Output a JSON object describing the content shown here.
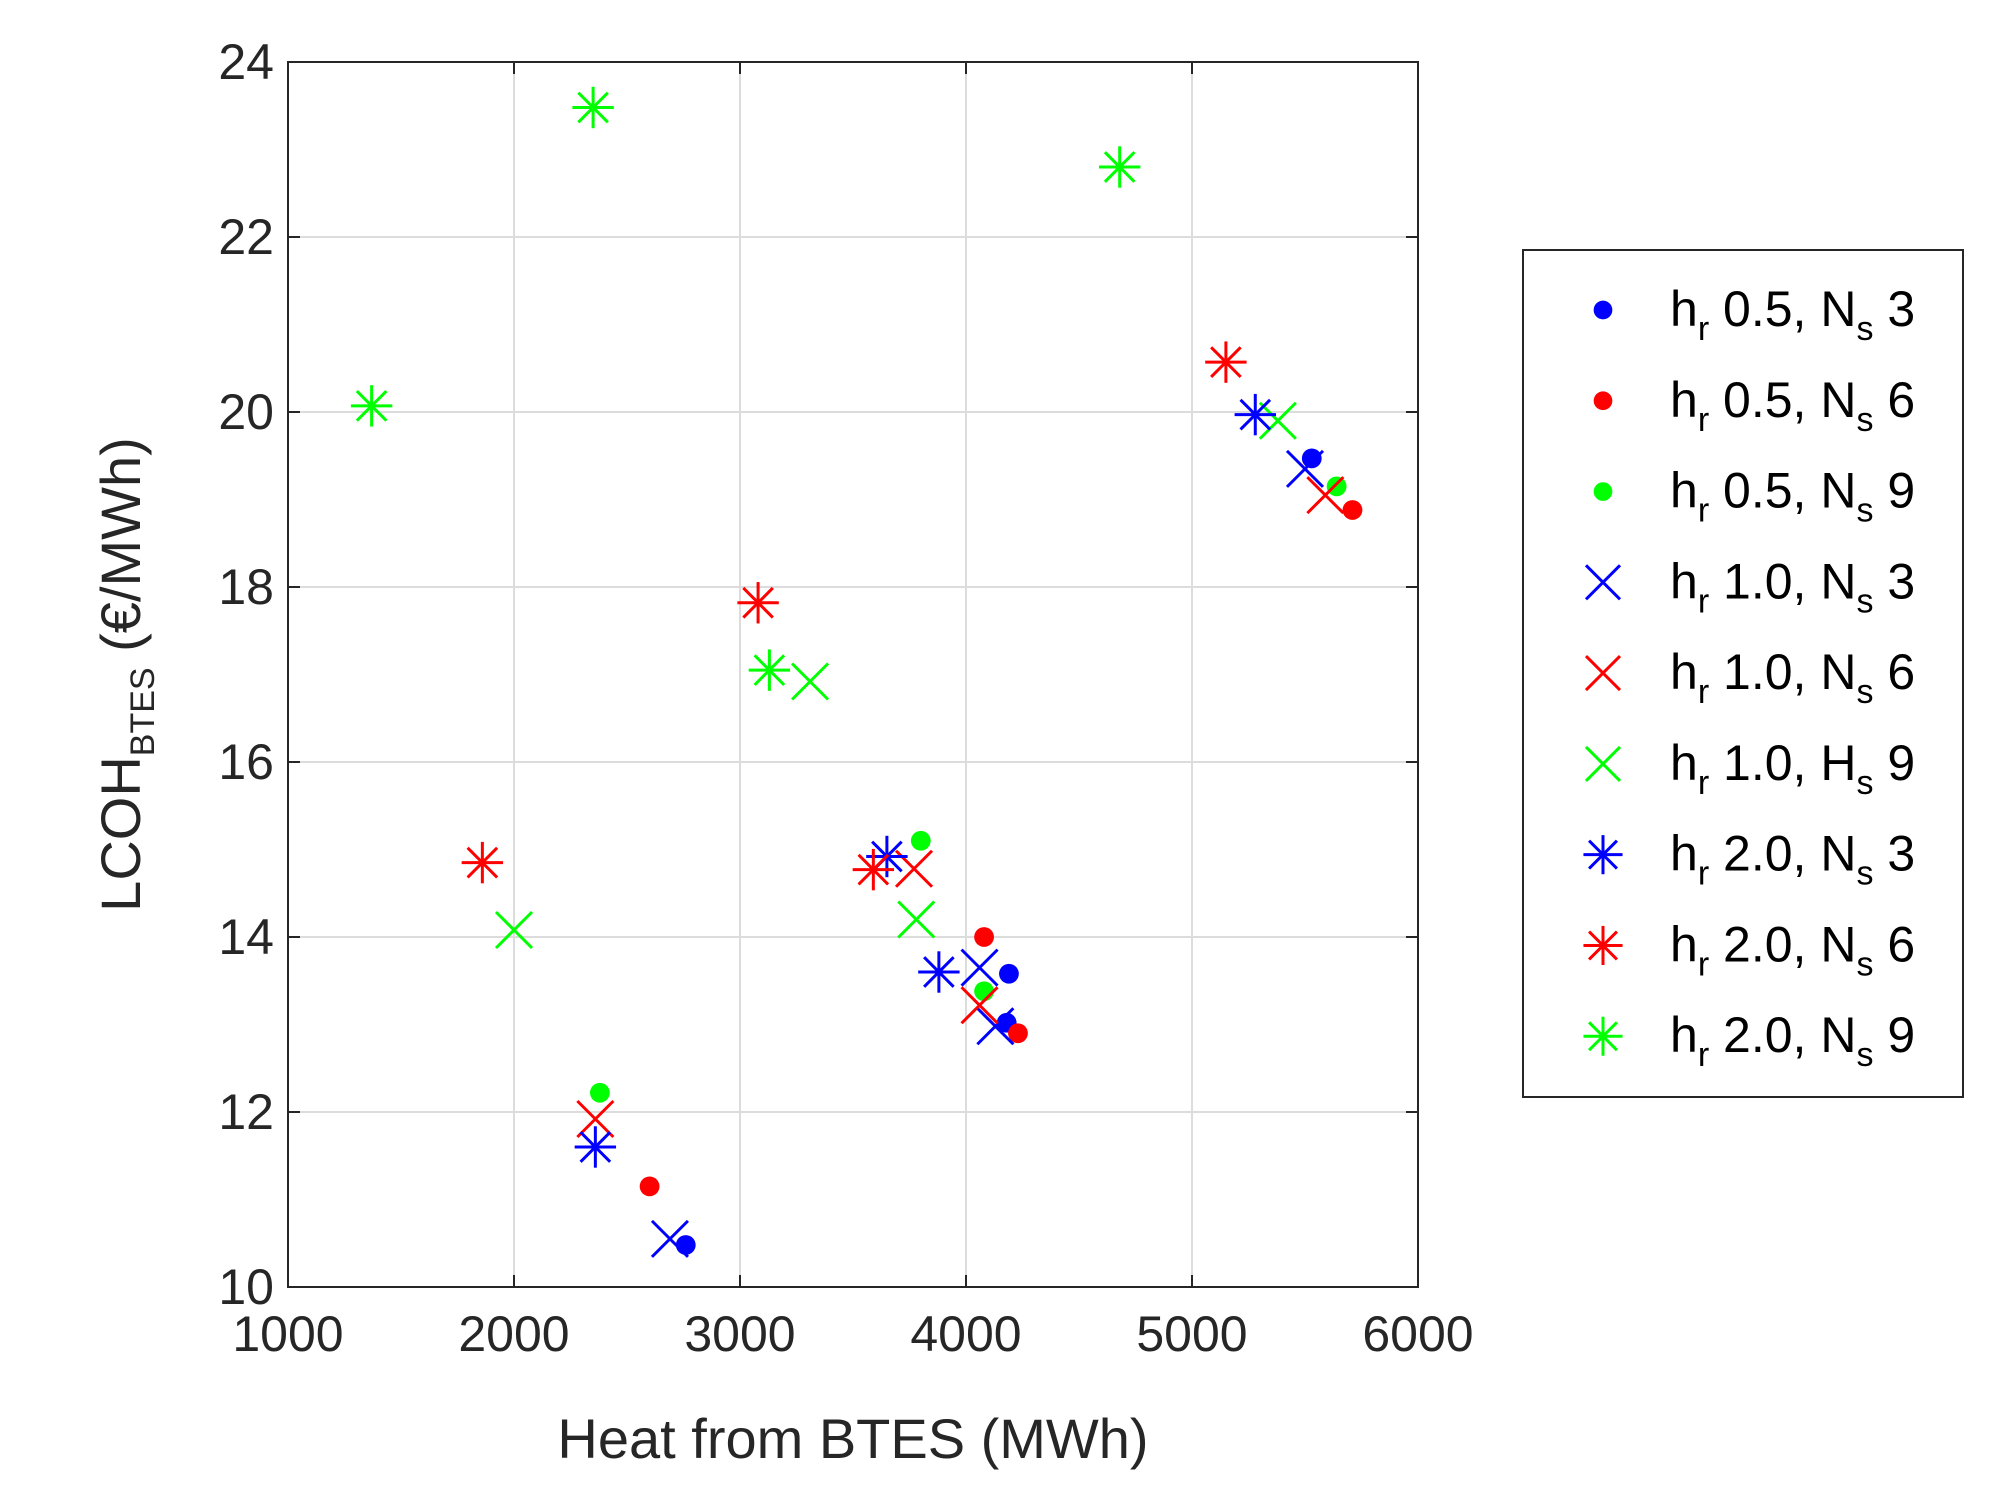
{
  "chart_data": {
    "type": "scatter",
    "xlabel": "Heat from BTES (MWh)",
    "ylabel": {
      "main": "LCOH",
      "sub": "BTES",
      "unit": " (€/MWh)"
    },
    "xlim": [
      1000,
      6000
    ],
    "ylim": [
      10,
      24
    ],
    "xticks": [
      1000,
      2000,
      3000,
      4000,
      5000,
      6000
    ],
    "yticks": [
      10,
      12,
      14,
      16,
      18,
      20,
      22,
      24
    ],
    "xtick_labels": [
      "1000",
      "2000",
      "3000",
      "4000",
      "5000",
      "6000"
    ],
    "ytick_labels": [
      "10",
      "12",
      "14",
      "16",
      "18",
      "20",
      "22",
      "24"
    ],
    "grid": true,
    "legend_position": "outside-right",
    "series": [
      {
        "id": "s1",
        "marker": "dot",
        "color": "#0000ff",
        "legend": {
          "h": "h",
          "r": "r",
          "val": " 0.5, ",
          "N": "N",
          "s": "s",
          "num": " 3"
        },
        "points": [
          [
            2760,
            10.48
          ],
          [
            4180,
            13.02
          ],
          [
            4190,
            13.58
          ],
          [
            5530,
            19.47
          ]
        ]
      },
      {
        "id": "s2",
        "marker": "dot",
        "color": "#ff0000",
        "legend": {
          "h": "h",
          "r": "r",
          "val": " 0.5, ",
          "N": "N",
          "s": "s",
          "num": " 6"
        },
        "points": [
          [
            2600,
            11.15
          ],
          [
            4080,
            14.0
          ],
          [
            4230,
            12.9
          ],
          [
            5710,
            18.88
          ]
        ]
      },
      {
        "id": "s3",
        "marker": "dot",
        "color": "#00ff00",
        "legend": {
          "h": "h",
          "r": "r",
          "val": " 0.5, ",
          "N": "N",
          "s": "s",
          "num": " 9"
        },
        "points": [
          [
            2380,
            12.22
          ],
          [
            3800,
            15.1
          ],
          [
            4080,
            13.38
          ],
          [
            5640,
            19.15
          ]
        ]
      },
      {
        "id": "s4",
        "marker": "x",
        "color": "#0000ff",
        "legend": {
          "h": "h",
          "r": "r",
          "val": " 1.0, ",
          "N": "N",
          "s": "s",
          "num": " 3"
        },
        "points": [
          [
            2690,
            10.55
          ],
          [
            4060,
            13.65
          ],
          [
            4130,
            12.98
          ],
          [
            5500,
            19.35
          ]
        ]
      },
      {
        "id": "s5",
        "marker": "x",
        "color": "#ff0000",
        "legend": {
          "h": "h",
          "r": "r",
          "val": " 1.0, ",
          "N": "N",
          "s": "s",
          "num": " 6"
        },
        "points": [
          [
            2360,
            11.92
          ],
          [
            3770,
            14.78
          ],
          [
            4060,
            13.22
          ],
          [
            5590,
            19.05
          ]
        ]
      },
      {
        "id": "s6",
        "marker": "x",
        "color": "#00ff00",
        "legend": {
          "h": "h",
          "r": "r",
          "val": " 1.0, ",
          "N": "H",
          "s": "s",
          "num": " 9"
        },
        "points": [
          [
            2000,
            14.08
          ],
          [
            3310,
            16.92
          ],
          [
            3780,
            14.2
          ],
          [
            5380,
            19.9
          ]
        ]
      },
      {
        "id": "s7",
        "marker": "star",
        "color": "#0000ff",
        "legend": {
          "h": "h",
          "r": "r",
          "val": " 2.0, ",
          "N": "N",
          "s": "s",
          "num": " 3"
        },
        "points": [
          [
            2360,
            11.6
          ],
          [
            3650,
            14.92
          ],
          [
            3880,
            13.6
          ],
          [
            5280,
            19.97
          ]
        ]
      },
      {
        "id": "s8",
        "marker": "star",
        "color": "#ff0000",
        "legend": {
          "h": "h",
          "r": "r",
          "val": " 2.0, ",
          "N": "N",
          "s": "s",
          "num": " 6"
        },
        "points": [
          [
            1860,
            14.85
          ],
          [
            3080,
            17.82
          ],
          [
            3590,
            14.77
          ],
          [
            5150,
            20.57
          ]
        ]
      },
      {
        "id": "s9",
        "marker": "star",
        "color": "#00ff00",
        "legend": {
          "h": "h",
          "r": "r",
          "val": " 2.0, ",
          "N": "N",
          "s": "s",
          "num": " 9"
        },
        "points": [
          [
            1370,
            20.07
          ],
          [
            2350,
            23.48
          ],
          [
            3130,
            17.05
          ],
          [
            4680,
            22.8
          ]
        ]
      }
    ]
  }
}
